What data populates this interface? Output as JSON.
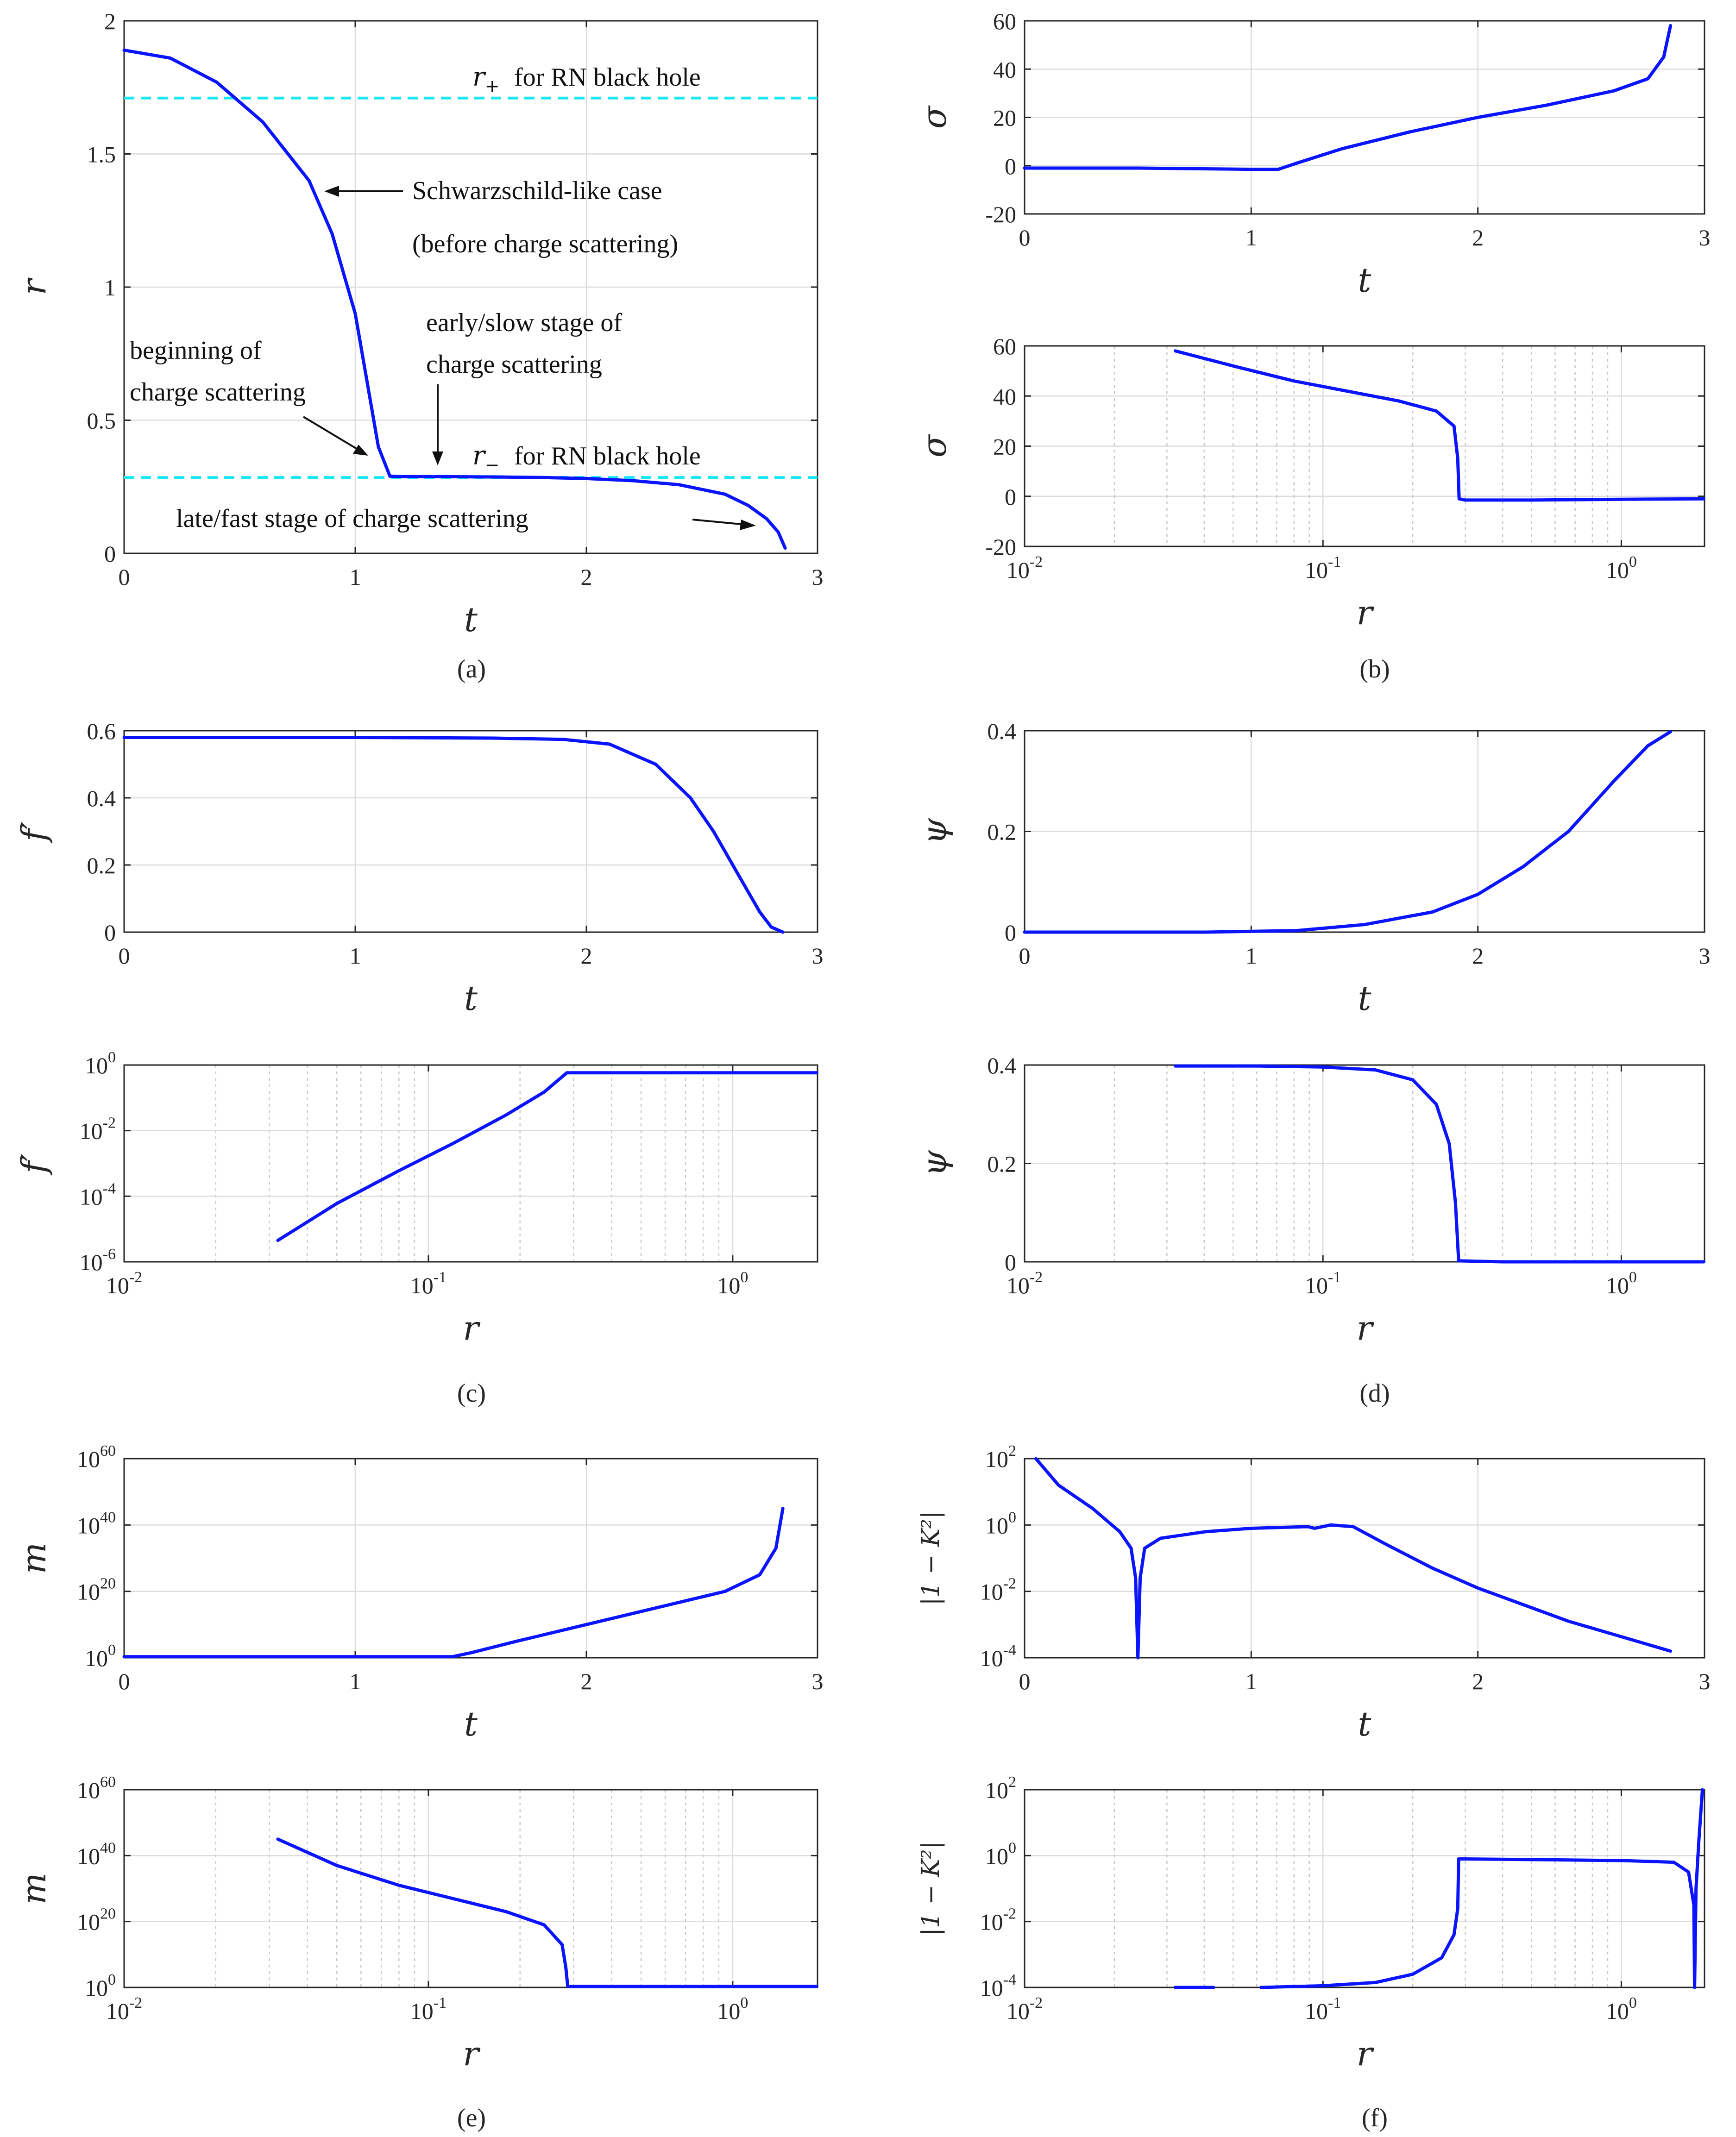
{
  "figure": {
    "captions": [
      "(a)",
      "(b)",
      "(c)",
      "(d)",
      "(e)",
      "(f)"
    ]
  },
  "colors": {
    "curve": "#0a14ff",
    "reference_line": "#19e8f2",
    "axes": "#262626",
    "grid": "#dcdcdc"
  },
  "chart_data": [
    {
      "id": "a",
      "type": "line",
      "xlabel": "t",
      "ylabel": "r",
      "xscale": "linear",
      "yscale": "linear",
      "xlim": [
        0,
        3
      ],
      "ylim": [
        0,
        2
      ],
      "xticks": [
        0,
        1,
        2,
        3
      ],
      "xtick_labels": [
        "0",
        "1",
        "2",
        "3"
      ],
      "yticks": [
        0,
        0.5,
        1,
        1.5,
        2
      ],
      "ytick_labels": [
        "0",
        "0.5",
        "1",
        "1.5",
        "2"
      ],
      "grid": true,
      "series": [
        {
          "name": "r(t)",
          "x": [
            0,
            0.2,
            0.4,
            0.6,
            0.8,
            0.9,
            1.0,
            1.05,
            1.1,
            1.15,
            1.2,
            1.4,
            1.6,
            1.8,
            2.0,
            2.2,
            2.4,
            2.6,
            2.7,
            2.78,
            2.83,
            2.86
          ],
          "y": [
            1.89,
            1.86,
            1.77,
            1.62,
            1.4,
            1.2,
            0.9,
            0.65,
            0.4,
            0.29,
            0.288,
            0.288,
            0.287,
            0.285,
            0.281,
            0.273,
            0.258,
            0.222,
            0.18,
            0.13,
            0.08,
            0.02
          ]
        }
      ],
      "reference_lines": [
        {
          "name": "r_plus",
          "y": 1.71,
          "label": "for RN black hole",
          "symbol": "r",
          "subscript": "+"
        },
        {
          "name": "r_minus",
          "y": 0.285,
          "label": "for RN black hole",
          "symbol": "r",
          "subscript": "−"
        }
      ],
      "annotations": [
        {
          "text": "Schwarzschild-like case"
        },
        {
          "text": "(before charge scattering)"
        },
        {
          "text": "beginning of"
        },
        {
          "text": "charge scattering"
        },
        {
          "text": "early/slow stage of"
        },
        {
          "text": "charge scattering"
        },
        {
          "text": "late/fast stage of charge scattering"
        }
      ]
    },
    {
      "id": "b_top",
      "type": "line",
      "xlabel": "t",
      "ylabel": "σ",
      "xscale": "linear",
      "yscale": "linear",
      "xlim": [
        0,
        3
      ],
      "ylim": [
        -20,
        60
      ],
      "xticks": [
        0,
        1,
        2,
        3
      ],
      "xtick_labels": [
        "0",
        "1",
        "2",
        "3"
      ],
      "yticks": [
        -20,
        0,
        20,
        40,
        60
      ],
      "ytick_labels": [
        "-20",
        "0",
        "20",
        "40",
        "60"
      ],
      "grid": true,
      "series": [
        {
          "name": "σ(t)",
          "x": [
            0,
            0.5,
            1.0,
            1.12,
            1.2,
            1.4,
            1.7,
            2.0,
            2.3,
            2.6,
            2.75,
            2.82,
            2.85
          ],
          "y": [
            -1,
            -1,
            -1.5,
            -1.5,
            1,
            7,
            14,
            20,
            25,
            31,
            36,
            45,
            58
          ]
        }
      ]
    },
    {
      "id": "b_bottom",
      "type": "line",
      "xlabel": "r",
      "ylabel": "σ",
      "xscale": "log",
      "yscale": "linear",
      "xlim": [
        0.01,
        1.9
      ],
      "ylim": [
        -20,
        60
      ],
      "xticks": [
        0.01,
        0.1,
        1
      ],
      "xtick_labels": [
        [
          "10",
          "-2"
        ],
        [
          "10",
          "-1"
        ],
        [
          "10",
          "0"
        ]
      ],
      "yticks": [
        -20,
        0,
        20,
        40,
        60
      ],
      "ytick_labels": [
        "-20",
        "0",
        "20",
        "40",
        "60"
      ],
      "grid": true,
      "series": [
        {
          "name": "σ(r)",
          "x": [
            0.032,
            0.05,
            0.08,
            0.12,
            0.18,
            0.24,
            0.275,
            0.283,
            0.286,
            0.3,
            0.5,
            1.0,
            1.89
          ],
          "y": [
            58,
            52,
            46,
            42,
            38,
            34,
            28,
            15,
            -1,
            -1.5,
            -1.5,
            -1.2,
            -1
          ]
        }
      ]
    },
    {
      "id": "c_top",
      "type": "line",
      "xlabel": "t",
      "ylabel": "f′",
      "xscale": "linear",
      "yscale": "linear",
      "xlim": [
        0,
        3
      ],
      "ylim": [
        0,
        0.6
      ],
      "xticks": [
        0,
        1,
        2,
        3
      ],
      "xtick_labels": [
        "0",
        "1",
        "2",
        "3"
      ],
      "yticks": [
        0,
        0.2,
        0.4,
        0.6
      ],
      "ytick_labels": [
        "0",
        "0.2",
        "0.4",
        "0.6"
      ],
      "grid": true,
      "series": [
        {
          "name": "f'(t)",
          "x": [
            0,
            1.0,
            1.6,
            1.9,
            2.1,
            2.3,
            2.45,
            2.55,
            2.65,
            2.75,
            2.8,
            2.85
          ],
          "y": [
            0.58,
            0.58,
            0.578,
            0.574,
            0.56,
            0.5,
            0.4,
            0.3,
            0.18,
            0.06,
            0.015,
            0.0
          ]
        }
      ]
    },
    {
      "id": "c_bottom",
      "type": "line",
      "xlabel": "r",
      "ylabel": "f′",
      "xscale": "log",
      "yscale": "log",
      "xlim": [
        0.01,
        1.9
      ],
      "ylim": [
        1e-06,
        1
      ],
      "xticks": [
        0.01,
        0.1,
        1
      ],
      "xtick_labels": [
        [
          "10",
          "-2"
        ],
        [
          "10",
          "-1"
        ],
        [
          "10",
          "0"
        ]
      ],
      "yticks": [
        1e-06,
        0.0001,
        0.01,
        1
      ],
      "ytick_labels": [
        [
          "10",
          "-6"
        ],
        [
          "10",
          "-4"
        ],
        [
          "10",
          "-2"
        ],
        [
          "10",
          "0"
        ]
      ],
      "grid": true,
      "series": [
        {
          "name": "f'(r)",
          "x": [
            0.032,
            0.05,
            0.08,
            0.12,
            0.18,
            0.24,
            0.285,
            0.5,
            1.0,
            1.89
          ],
          "y": [
            4.5e-06,
            6e-05,
            0.0006,
            0.004,
            0.03,
            0.15,
            0.58,
            0.58,
            0.58,
            0.58
          ]
        }
      ]
    },
    {
      "id": "d_top",
      "type": "line",
      "xlabel": "t",
      "ylabel": "ψ",
      "xscale": "linear",
      "yscale": "linear",
      "xlim": [
        0,
        3
      ],
      "ylim": [
        0,
        0.4
      ],
      "xticks": [
        0,
        1,
        2,
        3
      ],
      "xtick_labels": [
        "0",
        "1",
        "2",
        "3"
      ],
      "yticks": [
        0,
        0.2,
        0.4
      ],
      "ytick_labels": [
        "0",
        "0.2",
        "0.4"
      ],
      "grid": true,
      "series": [
        {
          "name": "ψ(t)",
          "x": [
            0,
            0.8,
            1.2,
            1.5,
            1.8,
            2.0,
            2.2,
            2.4,
            2.6,
            2.75,
            2.85
          ],
          "y": [
            0,
            0.0,
            0.003,
            0.015,
            0.04,
            0.075,
            0.13,
            0.2,
            0.3,
            0.37,
            0.398
          ]
        }
      ]
    },
    {
      "id": "d_bottom",
      "type": "line",
      "xlabel": "r",
      "ylabel": "ψ",
      "xscale": "log",
      "yscale": "linear",
      "xlim": [
        0.01,
        1.9
      ],
      "ylim": [
        0,
        0.4
      ],
      "xticks": [
        0.01,
        0.1,
        1
      ],
      "xtick_labels": [
        [
          "10",
          "-2"
        ],
        [
          "10",
          "-1"
        ],
        [
          "10",
          "0"
        ]
      ],
      "yticks": [
        0,
        0.2,
        0.4
      ],
      "ytick_labels": [
        "0",
        "0.2",
        "0.4"
      ],
      "grid": true,
      "series": [
        {
          "name": "ψ(r)",
          "x": [
            0.032,
            0.06,
            0.1,
            0.15,
            0.2,
            0.24,
            0.265,
            0.278,
            0.285,
            0.4,
            1.0,
            1.89
          ],
          "y": [
            0.398,
            0.398,
            0.396,
            0.39,
            0.37,
            0.32,
            0.24,
            0.12,
            0.002,
            0.0,
            0.0,
            0.0
          ]
        }
      ]
    },
    {
      "id": "e_top",
      "type": "line",
      "xlabel": "t",
      "ylabel": "m",
      "xscale": "linear",
      "yscale": "log",
      "xlim": [
        0,
        3
      ],
      "ylim": [
        1,
        1e+60
      ],
      "xticks": [
        0,
        1,
        2,
        3
      ],
      "xtick_labels": [
        "0",
        "1",
        "2",
        "3"
      ],
      "yticks": [
        1,
        1e+20,
        1e+40,
        1e+60
      ],
      "ytick_labels": [
        [
          "10",
          "0"
        ],
        [
          "10",
          "20"
        ],
        [
          "10",
          "40"
        ],
        [
          "10",
          "60"
        ]
      ],
      "grid": true,
      "series": [
        {
          "name": "m(t)",
          "log10_y": true,
          "x": [
            0,
            1.0,
            1.42,
            1.5,
            1.7,
            2.0,
            2.3,
            2.6,
            2.75,
            2.82,
            2.85
          ],
          "y": [
            0.3,
            0.3,
            0.3,
            1.5,
            5,
            10,
            15,
            20,
            25,
            33,
            45
          ]
        }
      ]
    },
    {
      "id": "e_bottom",
      "type": "line",
      "xlabel": "r",
      "ylabel": "m",
      "xscale": "log",
      "yscale": "log",
      "xlim": [
        0.01,
        1.9
      ],
      "ylim": [
        1,
        1e+60
      ],
      "xticks": [
        0.01,
        0.1,
        1
      ],
      "xtick_labels": [
        [
          "10",
          "-2"
        ],
        [
          "10",
          "-1"
        ],
        [
          "10",
          "0"
        ]
      ],
      "yticks": [
        1,
        1e+20,
        1e+40,
        1e+60
      ],
      "ytick_labels": [
        [
          "10",
          "0"
        ],
        [
          "10",
          "20"
        ],
        [
          "10",
          "40"
        ],
        [
          "10",
          "60"
        ]
      ],
      "grid": true,
      "series": [
        {
          "name": "m(r)",
          "log10_y": true,
          "x": [
            0.032,
            0.05,
            0.08,
            0.12,
            0.18,
            0.24,
            0.275,
            0.283,
            0.287,
            0.5,
            1.0,
            1.89
          ],
          "y": [
            45,
            37,
            31,
            27,
            23,
            19,
            13,
            6,
            0.3,
            0.3,
            0.3,
            0.3
          ]
        }
      ]
    },
    {
      "id": "f_top",
      "type": "line",
      "xlabel": "t",
      "ylabel": "|1 − K²|",
      "xscale": "linear",
      "yscale": "log",
      "xlim": [
        0,
        3
      ],
      "ylim": [
        0.0001,
        100
      ],
      "xticks": [
        0,
        1,
        2,
        3
      ],
      "xtick_labels": [
        "0",
        "1",
        "2",
        "3"
      ],
      "yticks": [
        0.0001,
        0.01,
        1,
        100
      ],
      "ytick_labels": [
        [
          "10",
          "-4"
        ],
        [
          "10",
          "-2"
        ],
        [
          "10",
          "0"
        ],
        [
          "10",
          "2"
        ]
      ],
      "grid": true,
      "series": [
        {
          "name": "|1-K^2|(t)",
          "log10_y": true,
          "x": [
            0.05,
            0.15,
            0.3,
            0.42,
            0.47,
            0.49,
            0.5,
            0.51,
            0.53,
            0.6,
            0.8,
            1.0,
            1.25,
            1.28,
            1.35,
            1.45,
            1.6,
            1.8,
            2.0,
            2.2,
            2.4,
            2.6,
            2.8,
            2.85
          ],
          "y": [
            2.0,
            1.2,
            0.5,
            -0.2,
            -0.7,
            -1.6,
            -4,
            -1.6,
            -0.7,
            -0.4,
            -0.2,
            -0.1,
            -0.05,
            -0.1,
            0.0,
            -0.05,
            -0.6,
            -1.3,
            -1.9,
            -2.4,
            -2.9,
            -3.3,
            -3.7,
            -3.8
          ]
        }
      ]
    },
    {
      "id": "f_bottom",
      "type": "line",
      "xlabel": "r",
      "ylabel": "|1 − K²|",
      "xscale": "log",
      "yscale": "log",
      "xlim": [
        0.01,
        1.9
      ],
      "ylim": [
        0.0001,
        100
      ],
      "xticks": [
        0.01,
        0.1,
        1
      ],
      "xtick_labels": [
        [
          "10",
          "-2"
        ],
        [
          "10",
          "-1"
        ],
        [
          "10",
          "0"
        ]
      ],
      "yticks": [
        0.0001,
        0.01,
        1,
        100
      ],
      "ytick_labels": [
        [
          "10",
          "-4"
        ],
        [
          "10",
          "-2"
        ],
        [
          "10",
          "0"
        ],
        [
          "10",
          "2"
        ]
      ],
      "grid": true,
      "series": [
        {
          "name": "|1-K^2|(r) segment 1",
          "log10_y": true,
          "x": [
            0.032,
            0.043
          ],
          "y": [
            -4,
            -4
          ]
        },
        {
          "name": "|1-K^2|(r) segment 2",
          "log10_y": true,
          "x": [
            0.062,
            0.1,
            0.15,
            0.2,
            0.25,
            0.275,
            0.283,
            0.285,
            0.286,
            0.5,
            1.0,
            1.5,
            1.68,
            1.75,
            1.76,
            1.78,
            1.82,
            1.87
          ],
          "y": [
            -4,
            -3.95,
            -3.85,
            -3.6,
            -3.1,
            -2.4,
            -1.6,
            -0.1,
            -0.1,
            -0.12,
            -0.15,
            -0.2,
            -0.5,
            -1.5,
            -4,
            -1.0,
            0.5,
            2.0
          ]
        }
      ]
    }
  ]
}
